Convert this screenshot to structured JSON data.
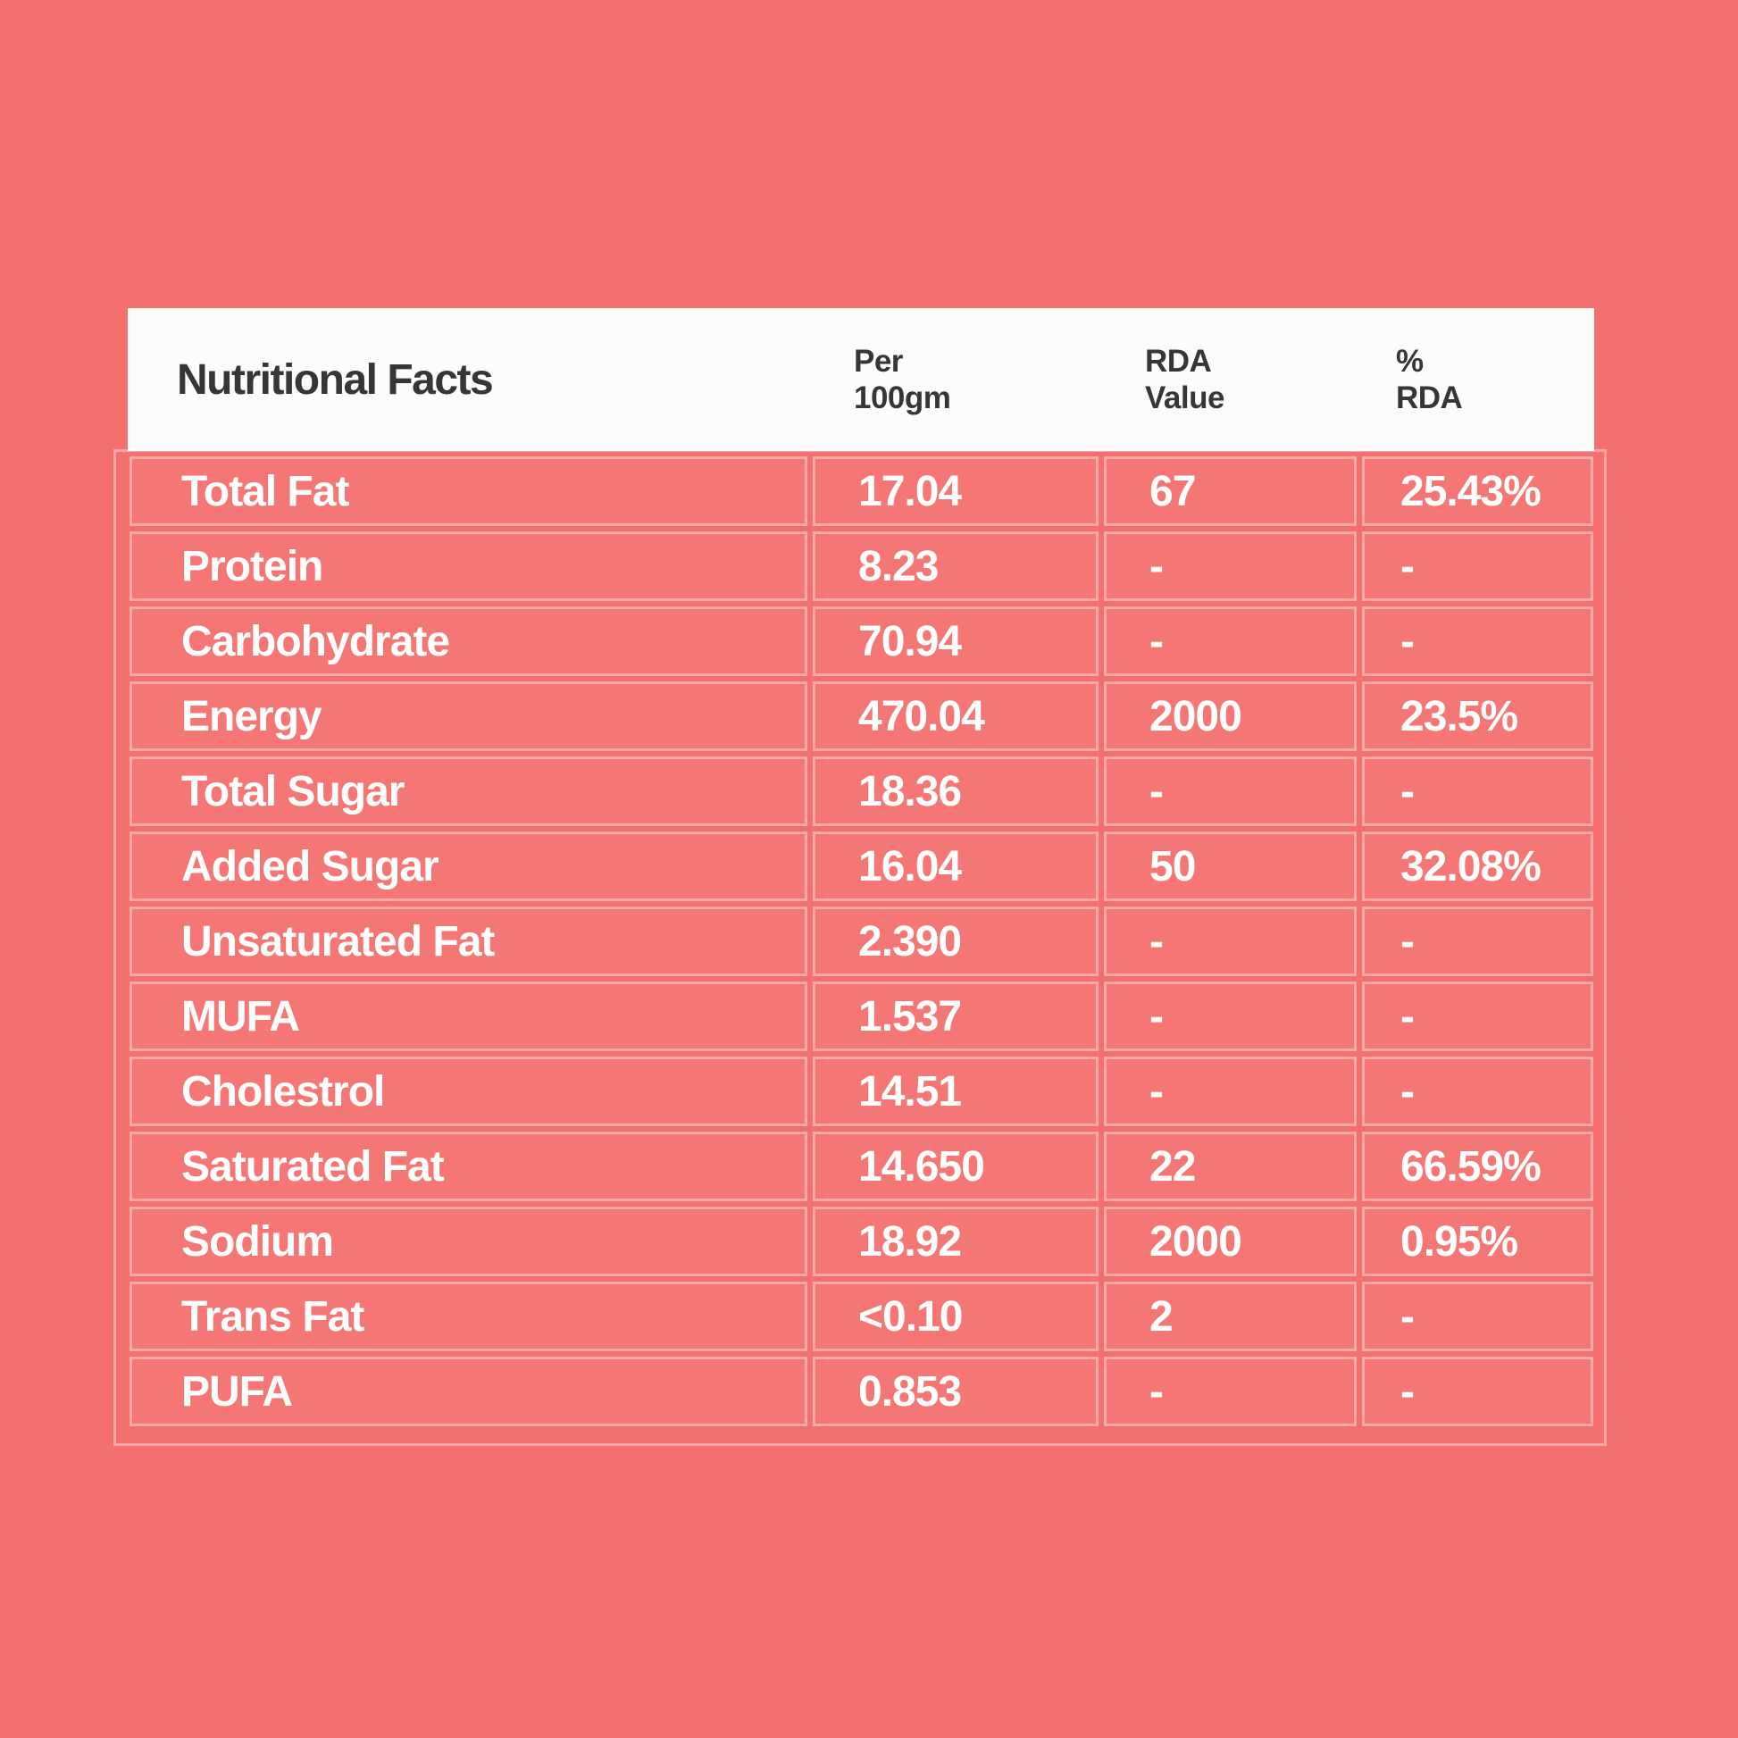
{
  "colors": {
    "background": "#F4706E",
    "header_background": "#FDFCFC",
    "grid_line": "rgba(255,255,255,0.38)",
    "text_dark": "#363636",
    "text_light": "#FFFFFF"
  },
  "table": {
    "title": "Nutritional Facts",
    "columns": [
      "Per\n100gm",
      "RDA\nValue",
      "%\nRDA"
    ],
    "rows": [
      {
        "label": "Total Fat",
        "per": "17.04",
        "rda": "67",
        "pct": "25.43%"
      },
      {
        "label": "Protein",
        "per": "8.23",
        "rda": "-",
        "pct": "-"
      },
      {
        "label": "Carbohydrate",
        "per": "70.94",
        "rda": "-",
        "pct": "-"
      },
      {
        "label": "Energy",
        "per": "470.04",
        "rda": "2000",
        "pct": "23.5%"
      },
      {
        "label": "Total Sugar",
        "per": "18.36",
        "rda": "-",
        "pct": "-"
      },
      {
        "label": "Added Sugar",
        "per": "16.04",
        "rda": "50",
        "pct": "32.08%"
      },
      {
        "label": "Unsaturated Fat",
        "per": "2.390",
        "rda": "-",
        "pct": "-"
      },
      {
        "label": "MUFA",
        "per": "1.537",
        "rda": "-",
        "pct": "-"
      },
      {
        "label": "Cholestrol",
        "per": "14.51",
        "rda": "-",
        "pct": "-"
      },
      {
        "label": "Saturated Fat",
        "per": "14.650",
        "rda": "22",
        "pct": "66.59%"
      },
      {
        "label": "Sodium",
        "per": "18.92",
        "rda": "2000",
        "pct": "0.95%"
      },
      {
        "label": "Trans Fat",
        "per": "<0.10",
        "rda": "2",
        "pct": "-"
      },
      {
        "label": "PUFA",
        "per": "0.853",
        "rda": "-",
        "pct": "-"
      }
    ]
  },
  "chart_data": {
    "type": "table",
    "title": "Nutritional Facts",
    "columns": [
      "Nutritional Facts",
      "Per 100gm",
      "RDA Value",
      "% RDA"
    ],
    "rows": [
      [
        "Total Fat",
        "17.04",
        "67",
        "25.43%"
      ],
      [
        "Protein",
        "8.23",
        "-",
        "-"
      ],
      [
        "Carbohydrate",
        "70.94",
        "-",
        "-"
      ],
      [
        "Energy",
        "470.04",
        "2000",
        "23.5%"
      ],
      [
        "Total Sugar",
        "18.36",
        "-",
        "-"
      ],
      [
        "Added Sugar",
        "16.04",
        "50",
        "32.08%"
      ],
      [
        "Unsaturated Fat",
        "2.390",
        "-",
        "-"
      ],
      [
        "MUFA",
        "1.537",
        "-",
        "-"
      ],
      [
        "Cholestrol",
        "14.51",
        "-",
        "-"
      ],
      [
        "Saturated Fat",
        "14.650",
        "22",
        "66.59%"
      ],
      [
        "Sodium",
        "18.92",
        "2000",
        "0.95%"
      ],
      [
        "Trans Fat",
        "<0.10",
        "2",
        "-"
      ],
      [
        "PUFA",
        "0.853",
        "-",
        "-"
      ]
    ],
    "layout": {
      "grid": true,
      "header_row_background": "#FDFCFC",
      "body_background": "#F4706E"
    }
  }
}
